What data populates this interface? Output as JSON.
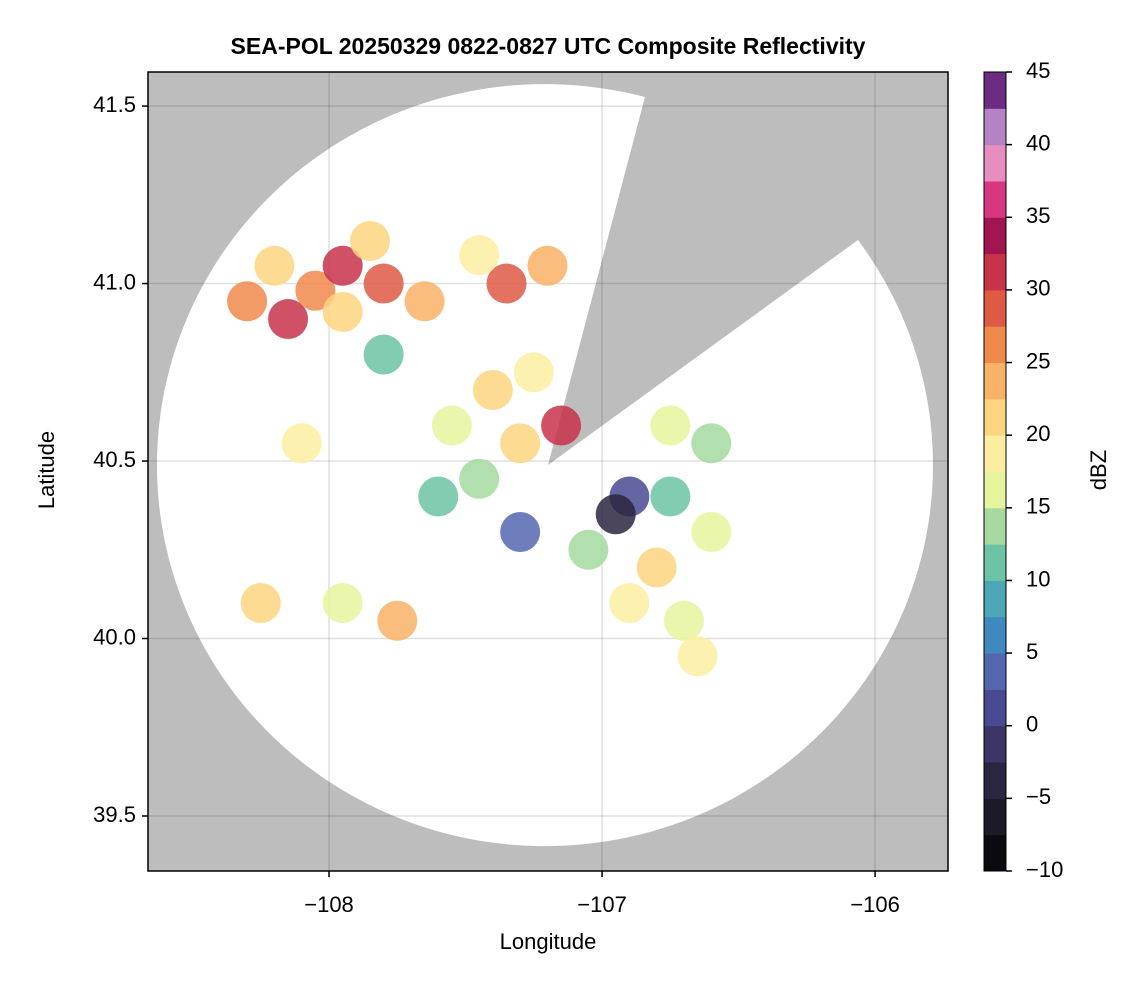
{
  "chart_data": {
    "type": "scatter",
    "title": "SEA-POL 20250329 0822-0827 UTC Composite Reflectivity",
    "x_label": "Longitude",
    "y_label": "Latitude",
    "xlim": [
      -108.663,
      -105.733
    ],
    "ylim": [
      39.345,
      41.596
    ],
    "xticks": [
      {
        "value": -108,
        "label": "−108"
      },
      {
        "value": -107,
        "label": "−107"
      },
      {
        "value": -106,
        "label": "−106"
      }
    ],
    "yticks": [
      39.5,
      40.0,
      40.5,
      41.0,
      41.5
    ],
    "grid": true,
    "background": "#bdbdbd",
    "x": [
      -108.3,
      -108.15,
      -108.05,
      -107.95,
      -107.8,
      -107.65,
      -108.2,
      -107.85,
      -107.95,
      -107.35,
      -107.2,
      -107.45,
      -107.4,
      -107.55,
      -107.3,
      -107.45,
      -107.6,
      -107.25,
      -107.15,
      -106.9,
      -106.95,
      -106.75,
      -106.8,
      -106.9,
      -106.7,
      -106.6,
      -106.75,
      -106.6,
      -107.05,
      -107.3,
      -106.65,
      -108.25,
      -107.75,
      -107.95,
      -108.1,
      -107.8
    ],
    "y": [
      40.95,
      40.9,
      40.98,
      41.05,
      41.0,
      40.95,
      41.05,
      41.12,
      40.92,
      41.0,
      41.05,
      41.08,
      40.7,
      40.6,
      40.55,
      40.45,
      40.4,
      40.75,
      40.6,
      40.4,
      40.35,
      40.4,
      40.2,
      40.1,
      40.05,
      40.3,
      40.6,
      40.55,
      40.25,
      40.3,
      39.95,
      40.1,
      40.05,
      40.1,
      40.55,
      40.8
    ],
    "values": [
      27,
      31,
      25,
      30,
      28,
      24,
      22,
      20,
      22,
      29,
      24,
      18,
      20,
      15,
      22,
      13,
      12,
      19,
      30,
      2,
      -3,
      12,
      20,
      18,
      16,
      17,
      15,
      13,
      14,
      4,
      19,
      21,
      24,
      16,
      18,
      12
    ],
    "colorbar": {
      "label": "dBZ",
      "lim": [
        -10,
        45
      ],
      "ticks": [
        {
          "value": -10,
          "label": "−10"
        },
        {
          "value": -5,
          "label": "−5"
        },
        0,
        5,
        10,
        15,
        20,
        25,
        30,
        35,
        40,
        45
      ],
      "colors": [
        "#0a0a0f",
        "#1c1a26",
        "#2b2640",
        "#3c3566",
        "#4a4a93",
        "#5566b0",
        "#3f88c0",
        "#4ba6b5",
        "#6cc3a5",
        "#a5d9a0",
        "#e6f59d",
        "#fbeea0",
        "#fdd580",
        "#f9b266",
        "#f08a4b",
        "#de5a44",
        "#c8334a",
        "#a0154f",
        "#d8377f",
        "#e88ebf",
        "#b483c3",
        "#6b2c82"
      ]
    }
  }
}
